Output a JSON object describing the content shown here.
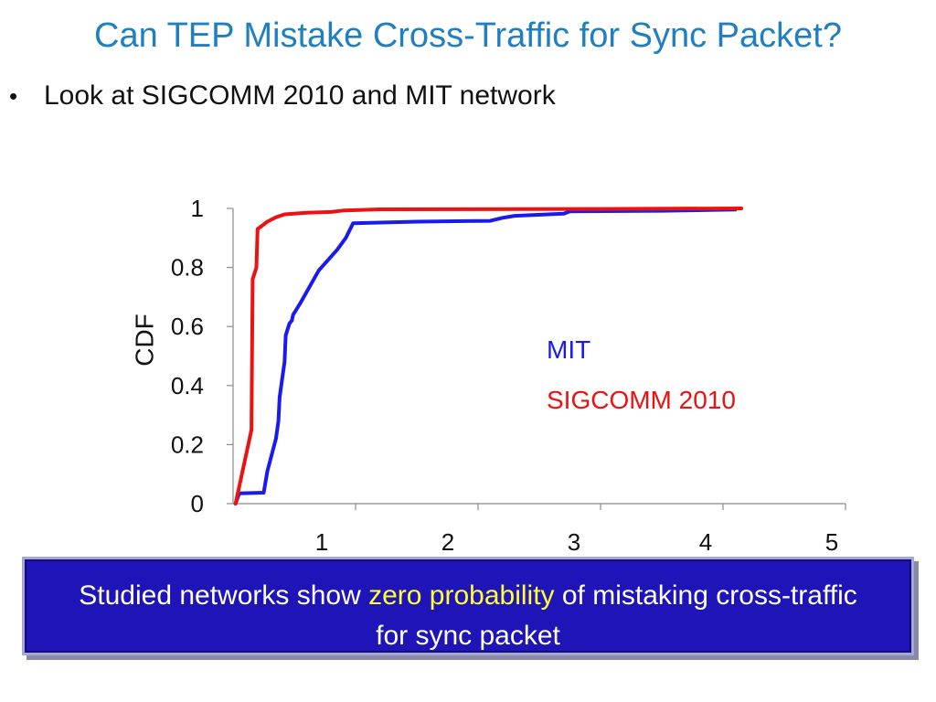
{
  "slide": {
    "title": "Can TEP Mistake Cross-Traffic for Sync Packet?",
    "bullet": "Look at SIGCOMM 2010 and MIT network",
    "bullet_marker": "•"
  },
  "banner": {
    "text_before": "Studied networks show ",
    "highlight": "zero probability",
    "text_after": " of mistaking cross-traffic for sync packet",
    "highlight_color": "#ffff33",
    "background_color": "#1e14b8"
  },
  "chart_data": {
    "type": "line",
    "title": "",
    "xlabel": "",
    "ylabel": "CDF",
    "xlim": [
      0,
      5
    ],
    "ylim": [
      0,
      1
    ],
    "x_ticks": [
      1,
      2,
      3,
      4,
      5
    ],
    "y_ticks": [
      "0",
      "0.2",
      "0.4",
      "0.6",
      "0.8",
      "1"
    ],
    "grid": false,
    "legend": "center-right",
    "series": [
      {
        "name": "MIT",
        "color": "#1a1aee",
        "points": [
          [
            0.02,
            0.0
          ],
          [
            0.05,
            0.035
          ],
          [
            0.25,
            0.037
          ],
          [
            0.28,
            0.11
          ],
          [
            0.35,
            0.22
          ],
          [
            0.37,
            0.28
          ],
          [
            0.38,
            0.36
          ],
          [
            0.42,
            0.48
          ],
          [
            0.43,
            0.57
          ],
          [
            0.46,
            0.61
          ],
          [
            0.48,
            0.62
          ],
          [
            0.49,
            0.64
          ],
          [
            0.55,
            0.68
          ],
          [
            0.7,
            0.79
          ],
          [
            0.85,
            0.86
          ],
          [
            0.92,
            0.9
          ],
          [
            0.98,
            0.95
          ],
          [
            1.5,
            0.955
          ],
          [
            2.1,
            0.958
          ],
          [
            2.2,
            0.968
          ],
          [
            2.3,
            0.975
          ],
          [
            2.7,
            0.982
          ],
          [
            2.75,
            0.99
          ],
          [
            3.5,
            0.992
          ],
          [
            4.1,
            0.996
          ]
        ]
      },
      {
        "name": "SIGCOMM 2010",
        "color": "#ee1111",
        "points": [
          [
            0.02,
            0.0
          ],
          [
            0.15,
            0.25
          ],
          [
            0.16,
            0.76
          ],
          [
            0.19,
            0.8
          ],
          [
            0.2,
            0.93
          ],
          [
            0.28,
            0.955
          ],
          [
            0.35,
            0.97
          ],
          [
            0.42,
            0.98
          ],
          [
            0.6,
            0.985
          ],
          [
            0.8,
            0.988
          ],
          [
            0.9,
            0.993
          ],
          [
            1.2,
            0.997
          ],
          [
            3.0,
            0.998
          ],
          [
            4.15,
            1.0
          ]
        ]
      }
    ]
  }
}
